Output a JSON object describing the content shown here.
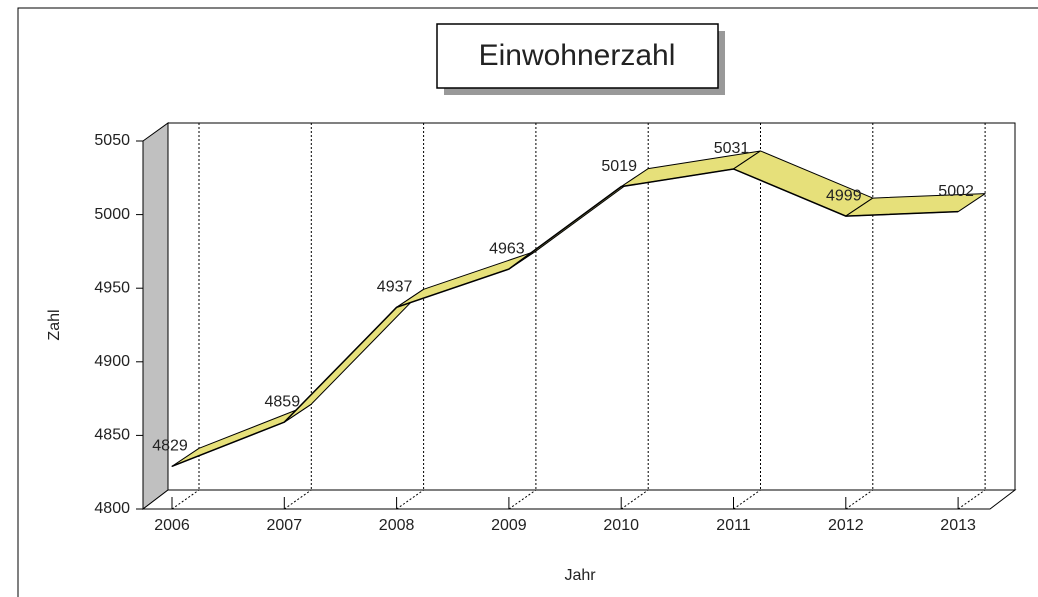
{
  "chart_data": {
    "type": "line",
    "title": "Einwohnerzahl",
    "categories": [
      "2006",
      "2007",
      "2008",
      "2009",
      "2010",
      "2011",
      "2012",
      "2013"
    ],
    "values": [
      4829,
      4859,
      4937,
      4963,
      5019,
      5031,
      4999,
      5002
    ],
    "color": "#e6e07a",
    "ylim": [
      4800,
      5050
    ],
    "yticks": [
      4800,
      4850,
      4900,
      4950,
      5000,
      5050
    ],
    "x_label": "Jahr",
    "y_label": "Zahl",
    "grid": true
  }
}
